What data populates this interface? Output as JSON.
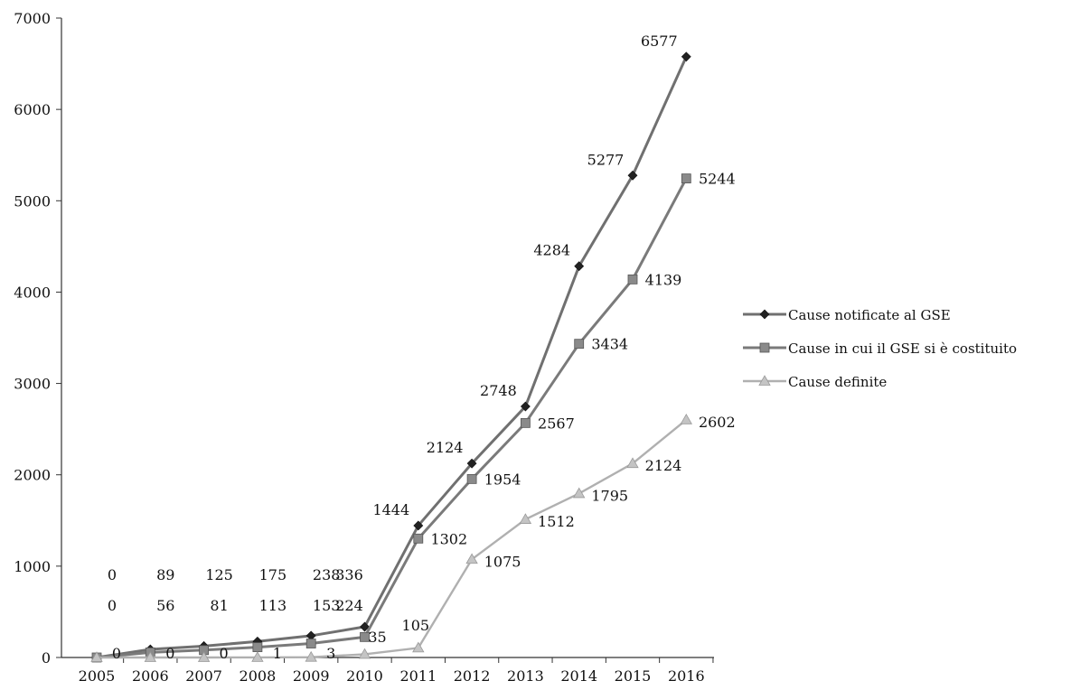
{
  "chart_data": {
    "type": "line",
    "x": [
      "2005",
      "2006",
      "2007",
      "2008",
      "2009",
      "2010",
      "2011",
      "2012",
      "2013",
      "2014",
      "2015",
      "2016"
    ],
    "ylim": [
      0,
      7000
    ],
    "yticks": [
      "0",
      "1000",
      "2000",
      "3000",
      "4000",
      "5000",
      "6000",
      "7000"
    ],
    "grid": false,
    "legend_position": "right",
    "series": [
      {
        "name": "Cause notificate al GSE",
        "marker": "diamond",
        "color": "#707070",
        "marker_color": "#222222",
        "values": [
          0,
          89,
          125,
          175,
          238,
          336,
          1444,
          2124,
          2748,
          4284,
          5277,
          6577
        ],
        "labels": [
          "0",
          "89",
          "125",
          "175",
          "238",
          "336",
          "1444",
          "2124",
          "2748",
          "4284",
          "5277",
          "6577"
        ]
      },
      {
        "name": "Cause in cui il GSE si è costituito",
        "marker": "square",
        "color": "#7a7a7a",
        "marker_color": "#8a8a8a",
        "values": [
          0,
          56,
          81,
          113,
          153,
          224,
          1302,
          1954,
          2567,
          3434,
          4139,
          5244
        ],
        "labels": [
          "0",
          "56",
          "81",
          "113",
          "153",
          "224",
          "1302",
          "1954",
          "2567",
          "3434",
          "4139",
          "5244"
        ]
      },
      {
        "name": "Cause definite",
        "marker": "triangle",
        "color": "#b0b0b0",
        "marker_color": "#c4c4c4",
        "values": [
          0,
          0,
          0,
          1,
          3,
          35,
          105,
          1075,
          1512,
          1795,
          2124,
          2602
        ],
        "labels": [
          "0",
          "0",
          "0",
          "1",
          "3",
          "35",
          "105",
          "1075",
          "1512",
          "1795",
          "2124",
          "2602"
        ]
      }
    ]
  }
}
